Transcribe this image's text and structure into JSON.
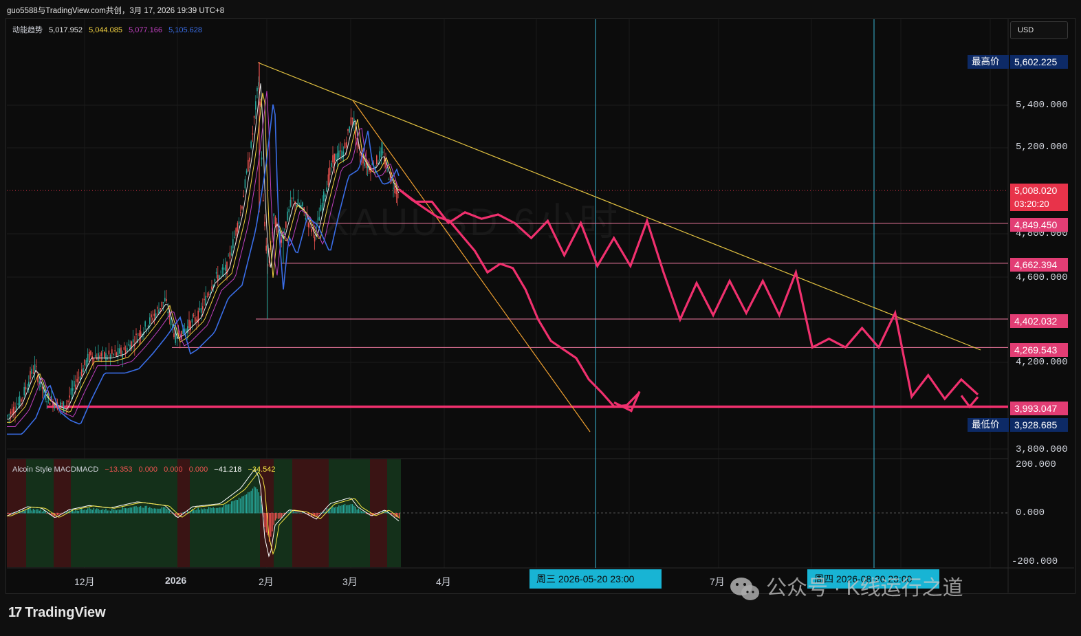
{
  "header": {
    "title": "guo5588与TradingView.com共创，3月 17, 2026 19:39 UTC+8"
  },
  "legend_top": {
    "name": "动能趋势",
    "v1": "5,017.952",
    "v2": "5,044.085",
    "v3": "5,077.166",
    "v4": "5,105.628",
    "colors": [
      "#e6e6e6",
      "#f5d442",
      "#c040c0",
      "#3a6ee8"
    ]
  },
  "currency": "USD",
  "ghost_symbol": "XAUUSD 6小时",
  "price_tags": {
    "high_name": "最高价",
    "high_val": "5,602.225",
    "low_name": "最低价",
    "low_val": "3,928.685",
    "current_val": "5,008.020",
    "countdown": "03:20:20",
    "levels": [
      "4,849.450",
      "4,662.394",
      "4,402.032",
      "4,269.543",
      "3,993.047"
    ]
  },
  "price_axis": [
    "5,400.000",
    "5,200.000",
    "4,800.000",
    "4,600.000",
    "4,200.000",
    "3,800.000"
  ],
  "macd_axis": [
    "200.000",
    "0.000",
    "-200.000"
  ],
  "macd_legend": {
    "name": "Alcoin Style MACDMACD",
    "v1": "−13.353",
    "v2": "0.000",
    "v3": "0.000",
    "v4": "0.000",
    "v5": "−41.218",
    "v6": "−34.542"
  },
  "time_axis": [
    "12月",
    "2026",
    "2月",
    "3月",
    "4月",
    "7月"
  ],
  "date_tags": [
    "周三 2026-05-20   23:00",
    "周四 2026-08-20   23:00"
  ],
  "watermark": "公众号 · K线运行之道",
  "brand": "TradingView",
  "colors": {
    "up": "#26a69a",
    "down": "#ef5350",
    "pink": "#f0306e",
    "yellow": "#e0c040",
    "orange": "#f0a030",
    "cyan": "#3ab7d6"
  },
  "chart_data": {
    "type": "line",
    "title": "",
    "y_axis_range": [
      3750,
      5650
    ],
    "horizontal_levels": [
      4849.45,
      4662.394,
      4402.032,
      4269.543,
      3993.047
    ],
    "high": 5602.225,
    "low": 3928.685,
    "current": 5008.02,
    "projected_path_A": [
      5008,
      4950,
      4950,
      4850,
      4900,
      4870,
      4890,
      4850,
      4780,
      4860,
      4700,
      4850,
      4650,
      4780,
      4650,
      4860,
      4620,
      4400,
      4570,
      4420,
      4580,
      4430,
      4580,
      4420,
      4620,
      4270,
      4310,
      4270,
      4360,
      4270,
      4430,
      4040,
      4140,
      4030,
      4120,
      4050
    ],
    "projected_path_B": [
      5008,
      4960,
      4920,
      4880,
      4860,
      4790,
      4720,
      4620,
      4660,
      4640,
      4540,
      4400,
      4300,
      4260,
      4220,
      4120,
      4060,
      3993,
      4000,
      4060
    ]
  }
}
